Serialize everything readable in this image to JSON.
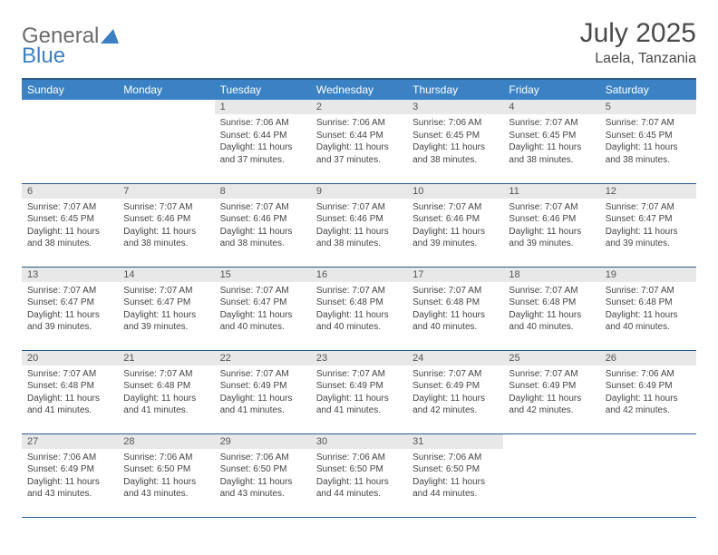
{
  "logo": {
    "text1": "General",
    "text2": "Blue"
  },
  "title": "July 2025",
  "location": "Laela, Tanzania",
  "dayHeaders": [
    "Sunday",
    "Monday",
    "Tuesday",
    "Wednesday",
    "Thursday",
    "Friday",
    "Saturday"
  ],
  "header_bg": "#3b82c4",
  "accent_border": "#2a5a8a",
  "daynum_bg": "#e8e8e8",
  "weeks": [
    [
      null,
      null,
      {
        "n": "1",
        "sr": "7:06 AM",
        "ss": "6:44 PM",
        "dl": "11 hours and 37 minutes."
      },
      {
        "n": "2",
        "sr": "7:06 AM",
        "ss": "6:44 PM",
        "dl": "11 hours and 37 minutes."
      },
      {
        "n": "3",
        "sr": "7:06 AM",
        "ss": "6:45 PM",
        "dl": "11 hours and 38 minutes."
      },
      {
        "n": "4",
        "sr": "7:07 AM",
        "ss": "6:45 PM",
        "dl": "11 hours and 38 minutes."
      },
      {
        "n": "5",
        "sr": "7:07 AM",
        "ss": "6:45 PM",
        "dl": "11 hours and 38 minutes."
      }
    ],
    [
      {
        "n": "6",
        "sr": "7:07 AM",
        "ss": "6:45 PM",
        "dl": "11 hours and 38 minutes."
      },
      {
        "n": "7",
        "sr": "7:07 AM",
        "ss": "6:46 PM",
        "dl": "11 hours and 38 minutes."
      },
      {
        "n": "8",
        "sr": "7:07 AM",
        "ss": "6:46 PM",
        "dl": "11 hours and 38 minutes."
      },
      {
        "n": "9",
        "sr": "7:07 AM",
        "ss": "6:46 PM",
        "dl": "11 hours and 38 minutes."
      },
      {
        "n": "10",
        "sr": "7:07 AM",
        "ss": "6:46 PM",
        "dl": "11 hours and 39 minutes."
      },
      {
        "n": "11",
        "sr": "7:07 AM",
        "ss": "6:46 PM",
        "dl": "11 hours and 39 minutes."
      },
      {
        "n": "12",
        "sr": "7:07 AM",
        "ss": "6:47 PM",
        "dl": "11 hours and 39 minutes."
      }
    ],
    [
      {
        "n": "13",
        "sr": "7:07 AM",
        "ss": "6:47 PM",
        "dl": "11 hours and 39 minutes."
      },
      {
        "n": "14",
        "sr": "7:07 AM",
        "ss": "6:47 PM",
        "dl": "11 hours and 39 minutes."
      },
      {
        "n": "15",
        "sr": "7:07 AM",
        "ss": "6:47 PM",
        "dl": "11 hours and 40 minutes."
      },
      {
        "n": "16",
        "sr": "7:07 AM",
        "ss": "6:48 PM",
        "dl": "11 hours and 40 minutes."
      },
      {
        "n": "17",
        "sr": "7:07 AM",
        "ss": "6:48 PM",
        "dl": "11 hours and 40 minutes."
      },
      {
        "n": "18",
        "sr": "7:07 AM",
        "ss": "6:48 PM",
        "dl": "11 hours and 40 minutes."
      },
      {
        "n": "19",
        "sr": "7:07 AM",
        "ss": "6:48 PM",
        "dl": "11 hours and 40 minutes."
      }
    ],
    [
      {
        "n": "20",
        "sr": "7:07 AM",
        "ss": "6:48 PM",
        "dl": "11 hours and 41 minutes."
      },
      {
        "n": "21",
        "sr": "7:07 AM",
        "ss": "6:48 PM",
        "dl": "11 hours and 41 minutes."
      },
      {
        "n": "22",
        "sr": "7:07 AM",
        "ss": "6:49 PM",
        "dl": "11 hours and 41 minutes."
      },
      {
        "n": "23",
        "sr": "7:07 AM",
        "ss": "6:49 PM",
        "dl": "11 hours and 41 minutes."
      },
      {
        "n": "24",
        "sr": "7:07 AM",
        "ss": "6:49 PM",
        "dl": "11 hours and 42 minutes."
      },
      {
        "n": "25",
        "sr": "7:07 AM",
        "ss": "6:49 PM",
        "dl": "11 hours and 42 minutes."
      },
      {
        "n": "26",
        "sr": "7:06 AM",
        "ss": "6:49 PM",
        "dl": "11 hours and 42 minutes."
      }
    ],
    [
      {
        "n": "27",
        "sr": "7:06 AM",
        "ss": "6:49 PM",
        "dl": "11 hours and 43 minutes."
      },
      {
        "n": "28",
        "sr": "7:06 AM",
        "ss": "6:50 PM",
        "dl": "11 hours and 43 minutes."
      },
      {
        "n": "29",
        "sr": "7:06 AM",
        "ss": "6:50 PM",
        "dl": "11 hours and 43 minutes."
      },
      {
        "n": "30",
        "sr": "7:06 AM",
        "ss": "6:50 PM",
        "dl": "11 hours and 44 minutes."
      },
      {
        "n": "31",
        "sr": "7:06 AM",
        "ss": "6:50 PM",
        "dl": "11 hours and 44 minutes."
      },
      null,
      null
    ]
  ],
  "labels": {
    "sunrise": "Sunrise:",
    "sunset": "Sunset:",
    "daylight": "Daylight:"
  }
}
